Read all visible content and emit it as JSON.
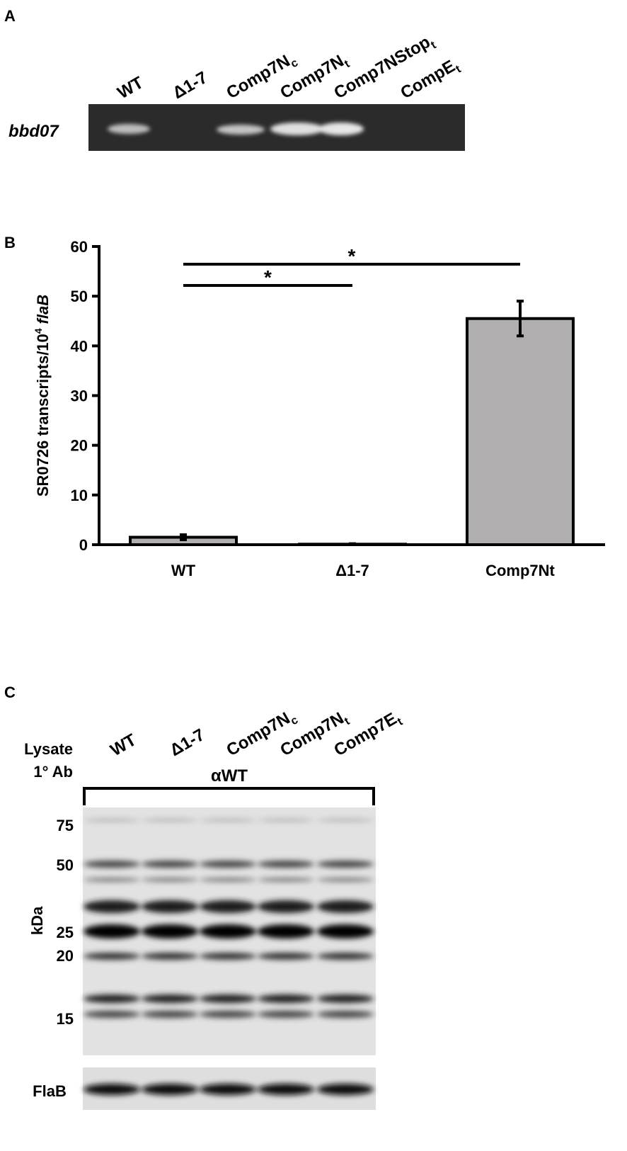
{
  "panel_a": {
    "label": "A",
    "gene": "bbd07",
    "lanes": [
      {
        "main": "WT"
      },
      {
        "main": "Δ1-7"
      },
      {
        "main": "Comp7N",
        "sub": "c"
      },
      {
        "main": "Comp7N",
        "sub": "t"
      },
      {
        "main": "Comp7NStop",
        "sub": "t"
      },
      {
        "main": "CompE",
        "sub": "t"
      }
    ]
  },
  "chart_data": {
    "type": "bar",
    "panel_label": "B",
    "y_label": {
      "text": "SR0726 transcripts/10",
      "sup": "4",
      "italic": "flaB"
    },
    "categories": [
      "WT",
      "Δ1-7",
      "Comp7Nt"
    ],
    "values": [
      1.5,
      0.1,
      45.5
    ],
    "errors": [
      0.5,
      0.1,
      3.5
    ],
    "color": "#b0aeae",
    "ylim": [
      0,
      60
    ],
    "yticks": [
      0,
      10,
      20,
      30,
      40,
      50,
      60
    ],
    "annotations": [
      "*",
      "*"
    ]
  },
  "panel_c": {
    "label": "C",
    "row_labels": [
      "Lysate",
      "1° Ab"
    ],
    "antibody": "αWT",
    "lanes": [
      {
        "main": "WT"
      },
      {
        "main": "Δ1-7"
      },
      {
        "main": "Comp7N",
        "sub": "c"
      },
      {
        "main": "Comp7N",
        "sub": "t"
      },
      {
        "main": "Comp7E",
        "sub": "t"
      }
    ],
    "markers": [
      "75",
      "50",
      "25",
      "20",
      "15"
    ],
    "marker_axis": "kDa",
    "loading_control": "FlaB"
  }
}
